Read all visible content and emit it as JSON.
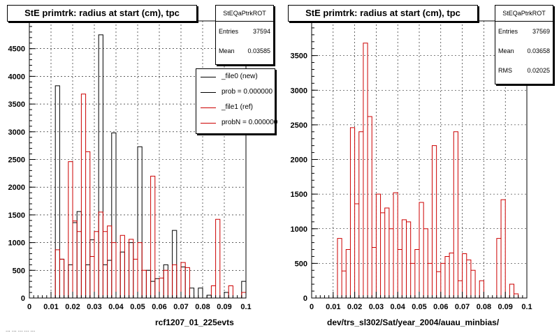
{
  "colors": {
    "black_series": "#000000",
    "red_series": "#cc0000",
    "grid": "#000000",
    "background": "#ffffff"
  },
  "footer_text": "... ... ... ... ...",
  "chart_data": [
    {
      "type": "bar",
      "title": "StE primtrk: radius at start (cm), tpc",
      "xlabel": "rcf1207_01_225evts",
      "ylabel": "",
      "xlim": [
        0,
        0.1
      ],
      "ylim": [
        0,
        5000
      ],
      "x_ticks": [
        "0",
        "0.01",
        "0.02",
        "0.03",
        "0.04",
        "0.05",
        "0.06",
        "0.07",
        "0.08",
        "0.09",
        "0.1"
      ],
      "y_ticks": [
        "0",
        "500",
        "1000",
        "1500",
        "2000",
        "2500",
        "3000",
        "3500",
        "4000",
        "4500"
      ],
      "grid": true,
      "stats": {
        "name": "StEQaPtrkROT",
        "entries_label": "Entries",
        "entries": "37594",
        "mean_label": "Mean",
        "mean": "0.03585"
      },
      "legend": {
        "placement": "top-right",
        "entries": [
          {
            "label": "_file0 (new)",
            "color": "#000000"
          },
          {
            "label": "prob = 0.000000",
            "color": "#000000"
          },
          {
            "label": "_file1 (ref)",
            "color": "#cc0000"
          },
          {
            "label": "probN = 0.000000",
            "color": "#cc0000"
          }
        ]
      },
      "bin_edges": [
        0,
        0.1
      ],
      "series": [
        {
          "name": "_file0 (new)",
          "color": "#000000",
          "values": [
            0,
            0,
            0,
            0,
            0,
            0,
            3830,
            700,
            0,
            600,
            1360,
            1560,
            0,
            600,
            1050,
            0,
            4750,
            600,
            680,
            2980,
            0,
            830,
            0,
            1000,
            0,
            2730,
            0,
            500,
            300,
            350,
            0,
            600,
            0,
            1220,
            0,
            560,
            0,
            180,
            0,
            180,
            0,
            50,
            0,
            0,
            0,
            100,
            0,
            0,
            0,
            300
          ]
        },
        {
          "name": "_file1 (ref)",
          "color": "#cc0000",
          "values": [
            0,
            0,
            0,
            0,
            0,
            0,
            870,
            700,
            0,
            2460,
            1390,
            1200,
            3680,
            2640,
            750,
            1200,
            1550,
            1200,
            1300,
            1000,
            0,
            1130,
            0,
            1060,
            700,
            1000,
            500,
            0,
            2200,
            0,
            360,
            500,
            0,
            600,
            0,
            640,
            550,
            0,
            0,
            0,
            0,
            0,
            220,
            1420,
            0,
            0,
            220,
            0,
            0,
            100
          ]
        }
      ]
    },
    {
      "type": "bar",
      "title": "StE primtrk: radius at start (cm), tpc",
      "xlabel": "dev/trs_sl302/Sat/year_2004/auau_minbias/",
      "ylabel": "",
      "xlim": [
        0,
        0.1
      ],
      "ylim": [
        0,
        4000
      ],
      "x_ticks": [
        "0",
        "0.01",
        "0.02",
        "0.03",
        "0.04",
        "0.05",
        "0.06",
        "0.07",
        "0.08",
        "0.09",
        "0.1"
      ],
      "y_ticks": [
        "0",
        "500",
        "1000",
        "1500",
        "2000",
        "2500",
        "3000",
        "3500"
      ],
      "grid": true,
      "stats": {
        "name": "StEQaPtrkROT",
        "entries_label": "Entries",
        "entries": "37569",
        "mean_label": "Mean",
        "mean": "0.03658",
        "rms_label": "RMS",
        "rms": "0.02025"
      },
      "series": [
        {
          "name": "",
          "color": "#cc0000",
          "values": [
            0,
            0,
            0,
            0,
            0,
            0,
            860,
            390,
            700,
            2460,
            1360,
            2400,
            3680,
            2620,
            730,
            1500,
            1230,
            1300,
            1000,
            1520,
            700,
            1130,
            1100,
            500,
            700,
            1380,
            1000,
            500,
            2200,
            380,
            500,
            600,
            650,
            2400,
            250,
            640,
            550,
            400,
            0,
            250,
            0,
            0,
            0,
            860,
            1420,
            0,
            200,
            60,
            0,
            0
          ]
        }
      ]
    }
  ]
}
